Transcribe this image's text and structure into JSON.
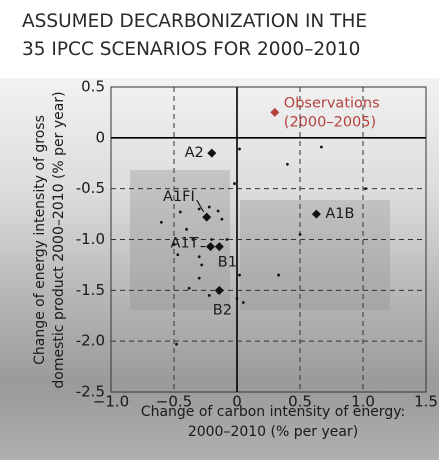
{
  "chart_data": {
    "type": "scatter",
    "title": [
      "ASSUMED DECARBONIZATION IN THE",
      "35 IPCC SCENARIOS FOR 2000–2010"
    ],
    "xlabel": [
      "Change of carbon intensity of energy:",
      "2000–2010 (% per year)"
    ],
    "ylabel": [
      "Change of energy intensity of gross",
      "domestic product 2000–2010 (% per year)"
    ],
    "xlim": [
      -1,
      1.5
    ],
    "ylim": [
      -2.5,
      0.5
    ],
    "xticks": [
      {
        "value": -1,
        "label": "−1.0"
      },
      {
        "value": -0.5,
        "label": "−0.5"
      },
      0,
      0.5,
      {
        "value": 1,
        "label": "1.0"
      },
      1.5
    ],
    "yticks": [
      0.5,
      0,
      {
        "value": -0.5,
        "label": "-0.5"
      },
      {
        "value": -1,
        "label": "-1.0"
      },
      {
        "value": -1.5,
        "label": "-1.5"
      },
      {
        "value": -2,
        "label": "-2.0"
      },
      {
        "value": -2.5,
        "label": "-2.5"
      }
    ],
    "grid": true,
    "series": [
      {
        "color": "#111111",
        "marker": "dot",
        "x": [
          0.02,
          0.4,
          0.67,
          -0.02,
          1.02,
          -0.6,
          -0.45,
          -0.3,
          -0.22,
          -0.15,
          -0.12,
          -0.4,
          -0.35,
          -0.5,
          -0.47,
          -0.3,
          -0.2,
          -0.08,
          -0.28,
          -0.3,
          -0.38,
          -0.22,
          -0.15,
          0.0,
          0.05,
          0.5,
          0.33,
          0.02,
          -0.48
        ],
        "values": [
          -0.11,
          -0.26,
          -0.09,
          -0.45,
          -0.5,
          -0.83,
          -0.73,
          -0.7,
          -0.68,
          -0.72,
          -0.8,
          -0.9,
          -1.0,
          -1.05,
          -1.15,
          -1.17,
          -1.0,
          -1.0,
          -1.25,
          -1.38,
          -1.48,
          -1.55,
          -1.52,
          -1.58,
          -1.62,
          -0.95,
          -1.35,
          -1.35,
          -2.03
        ]
      },
      {
        "color": "#111111",
        "marker": "diamond",
        "x": [
          -0.2,
          -0.24,
          -0.21,
          -0.14,
          -0.14,
          0.63
        ],
        "values": [
          -0.15,
          -0.78,
          -1.07,
          -1.07,
          -1.5,
          -0.75
        ],
        "point_labels": [
          "A2",
          "A1FI",
          "A1T",
          "B1",
          "B2",
          "A1B"
        ]
      },
      {
        "name": "Observations",
        "name_line2": "(2000–2005)",
        "color": "#b5423f",
        "marker": "diamond",
        "x": [
          0.3
        ],
        "values": [
          0.25
        ]
      }
    ]
  }
}
